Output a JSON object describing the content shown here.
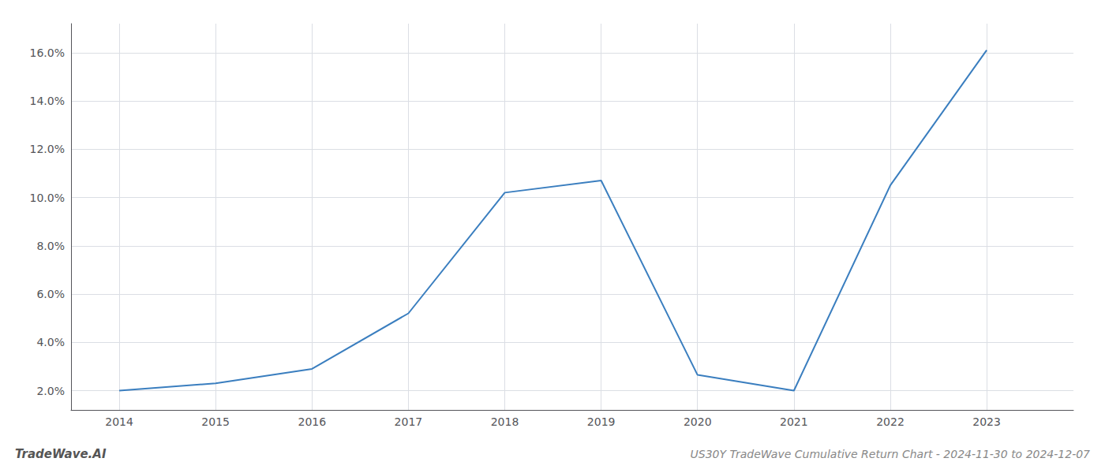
{
  "chart_data": {
    "type": "line",
    "title": "US30Y TradeWave Cumulative Return Chart - 2024-11-30 to 2024-12-07",
    "annotations": [
      "TradeWave.AI"
    ],
    "x": [
      2014,
      2015,
      2016,
      2017,
      2018,
      2019,
      2020,
      2021,
      2022,
      2023
    ],
    "values": [
      2.0,
      2.3,
      2.9,
      5.2,
      10.2,
      10.7,
      2.65,
      2.0,
      10.5,
      16.1
    ],
    "color": "#3a7ebf",
    "xlim": [
      2013.5,
      2023.9
    ],
    "ylim": [
      1.2,
      17.2
    ],
    "xticks": [
      2014,
      2015,
      2016,
      2017,
      2018,
      2019,
      2020,
      2021,
      2022,
      2023
    ],
    "yticks": [
      {
        "value": 2.0,
        "label": "2.0%"
      },
      {
        "value": 4.0,
        "label": "4.0%"
      },
      {
        "value": 6.0,
        "label": "6.0%"
      },
      {
        "value": 8.0,
        "label": "8.0%"
      },
      {
        "value": 10.0,
        "label": "10.0%"
      },
      {
        "value": 12.0,
        "label": "12.0%"
      },
      {
        "value": 14.0,
        "label": "14.0%"
      },
      {
        "value": 16.0,
        "label": "16.0%"
      }
    ],
    "grid": true
  }
}
